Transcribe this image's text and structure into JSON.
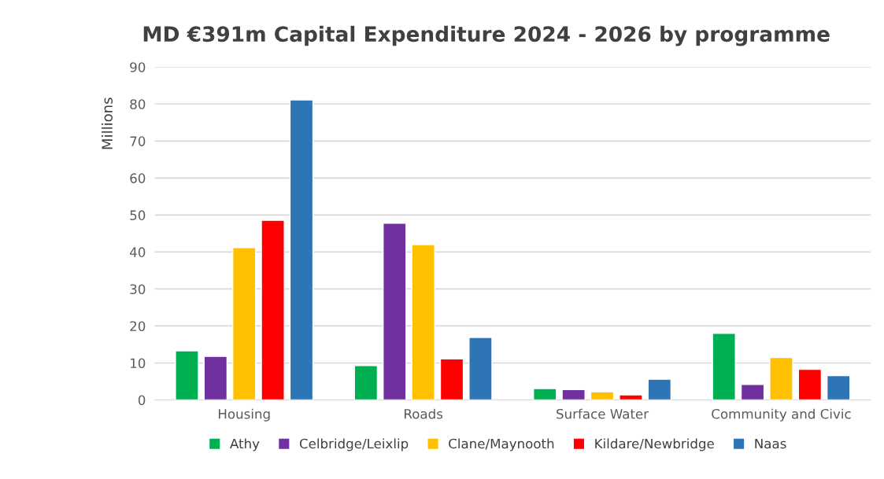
{
  "chart_data": {
    "type": "bar",
    "title": "MD €391m Capital Expenditure 2024 - 2026 by programme",
    "ylabel": "Millions",
    "categories": [
      "Housing",
      "Roads",
      "Surface Water",
      "Community and Civic"
    ],
    "series": [
      {
        "name": "Athy",
        "color": "#00b050",
        "values": [
          13.3,
          9.3,
          3.1,
          18.0
        ]
      },
      {
        "name": "Celbridge/Leixlip",
        "color": "#7030a0",
        "values": [
          11.8,
          47.8,
          2.8,
          4.2
        ]
      },
      {
        "name": "Clane/Maynooth",
        "color": "#ffc000",
        "values": [
          41.2,
          42.0,
          2.2,
          11.5
        ]
      },
      {
        "name": "Kildare/Newbridge",
        "color": "#ff0000",
        "values": [
          48.6,
          11.1,
          1.4,
          8.3
        ]
      },
      {
        "name": "Naas",
        "color": "#2e75b6",
        "values": [
          81.1,
          16.9,
          5.6,
          6.6
        ]
      }
    ],
    "ylim": [
      0,
      90
    ],
    "yticks": [
      0,
      10,
      20,
      30,
      40,
      50,
      60,
      70,
      80,
      90
    ],
    "grid": "y",
    "legend": "bottom"
  }
}
